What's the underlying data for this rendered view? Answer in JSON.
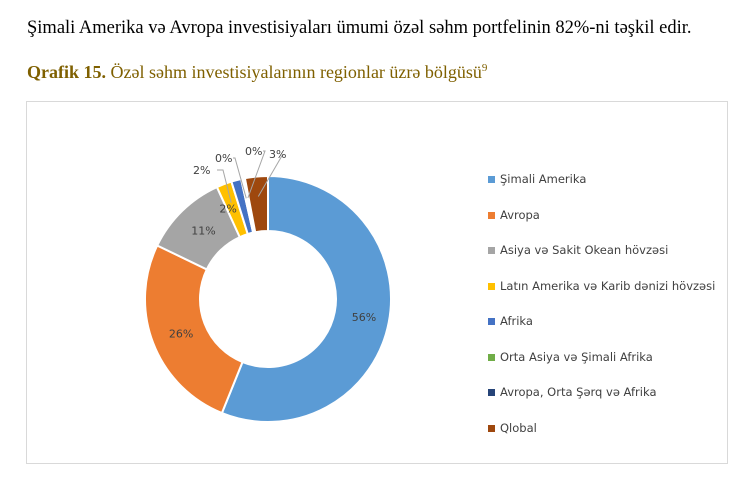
{
  "intro_text": "Şimali Amerika və Avropa investisiyaları ümumi özəl səhm portfelinin 82%-ni təşkil edir.",
  "caption": {
    "label": "Qrafik 15.",
    "text": " Özəl səhm investisiyalarının regionlar üzrə bölgüsü",
    "footnote": "9"
  },
  "chart_data": {
    "type": "pie",
    "variant": "donut",
    "legend_position": "right",
    "categories": [
      "Şimali Amerika",
      "Avropa",
      "Asiya və Sakit Okean hövzəsi",
      "Latın Amerika və Karib dənizi hövzəsi",
      "Afrika",
      "Orta Asiya və Şimali Afrika",
      "Avropa, Orta Şərq və Afrika",
      "Qlobal"
    ],
    "values": [
      56,
      26,
      11,
      2,
      2,
      0,
      0,
      3
    ],
    "labels": [
      "56%",
      "26%",
      "11%",
      "2%",
      "2%",
      "0%",
      "0%",
      "3%"
    ],
    "colors": [
      "#5B9BD5",
      "#ED7D31",
      "#A5A5A5",
      "#FFC000",
      "#4472C4",
      "#70AD47",
      "#264478",
      "#9E480E"
    ]
  }
}
